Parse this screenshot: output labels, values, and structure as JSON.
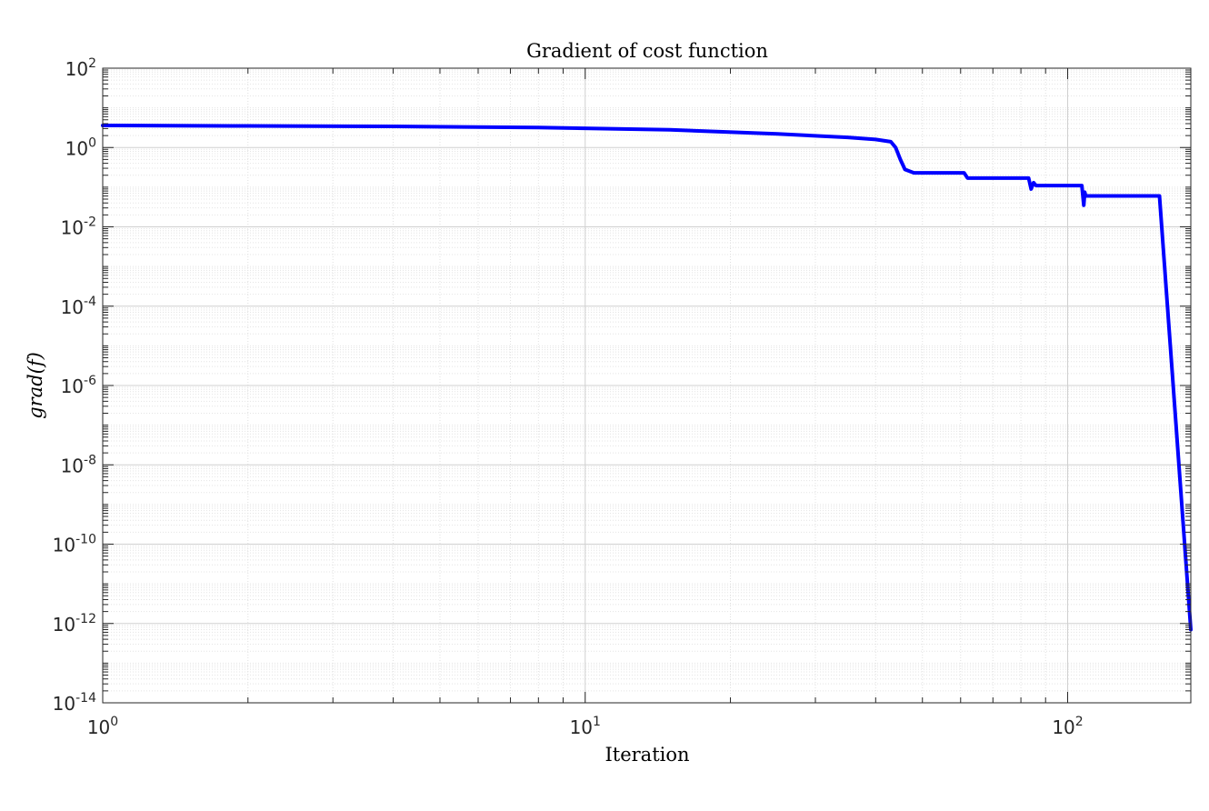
{
  "chart_data": {
    "type": "line",
    "title": "Gradient of cost function",
    "xlabel": "Iteration",
    "ylabel": "grad(f)",
    "xscale": "log",
    "yscale": "log",
    "xlim": [
      1,
      180
    ],
    "ylim": [
      1e-14,
      100
    ],
    "grid": true,
    "minor_grid": true,
    "legend": null,
    "x_tick_labels": [
      {
        "base": "10",
        "exp": "0"
      },
      {
        "base": "10",
        "exp": "1"
      },
      {
        "base": "10",
        "exp": "2"
      }
    ],
    "y_tick_labels": [
      {
        "base": "10",
        "exp": "2"
      },
      {
        "base": "10",
        "exp": "0"
      },
      {
        "base": "10",
        "exp": "-2"
      },
      {
        "base": "10",
        "exp": "-4"
      },
      {
        "base": "10",
        "exp": "-6"
      },
      {
        "base": "10",
        "exp": "-8"
      },
      {
        "base": "10",
        "exp": "-10"
      },
      {
        "base": "10",
        "exp": "-12"
      },
      {
        "base": "10",
        "exp": "-14"
      }
    ],
    "series": [
      {
        "color": "#0000ff",
        "x": [
          1,
          2,
          4,
          8,
          15,
          25,
          35,
          40,
          43,
          44,
          45,
          46,
          48,
          55,
          60,
          61,
          62,
          70,
          80,
          83,
          84,
          85,
          86,
          90,
          100,
          107,
          108,
          108.5,
          109,
          110,
          120,
          140,
          150,
          155,
          180
        ],
        "y": [
          3.6,
          3.5,
          3.4,
          3.2,
          2.8,
          2.2,
          1.8,
          1.6,
          1.4,
          1.0,
          0.5,
          0.28,
          0.23,
          0.23,
          0.23,
          0.23,
          0.17,
          0.17,
          0.17,
          0.17,
          0.09,
          0.13,
          0.11,
          0.11,
          0.11,
          0.11,
          0.035,
          0.075,
          0.06,
          0.06,
          0.06,
          0.06,
          0.06,
          0.06,
          7e-13
        ]
      }
    ]
  }
}
